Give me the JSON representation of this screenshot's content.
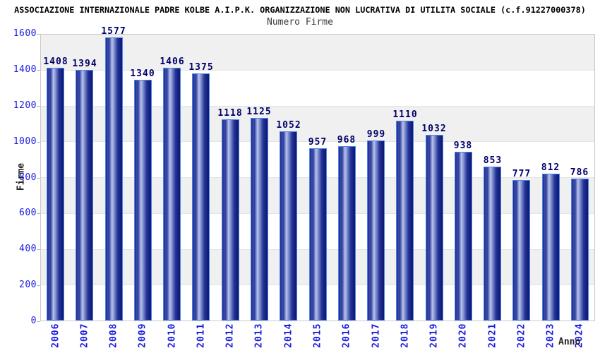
{
  "header": {
    "title": "ASSOCIAZIONE INTERNAZIONALE PADRE KOLBE A.I.P.K. ORGANIZZAZIONE NON LUCRATIVA DI UTILITA SOCIALE (c.f.91227000378)",
    "subtitle": "Numero Firme"
  },
  "chart_data": {
    "type": "bar",
    "title": "Numero Firme",
    "xlabel": "Anno",
    "ylabel": "Firme",
    "categories": [
      "2006",
      "2007",
      "2008",
      "2009",
      "2010",
      "2011",
      "2012",
      "2013",
      "2014",
      "2015",
      "2016",
      "2017",
      "2018",
      "2019",
      "2020",
      "2021",
      "2022",
      "2023",
      "2024"
    ],
    "values": [
      1408,
      1394,
      1577,
      1340,
      1406,
      1375,
      1118,
      1125,
      1052,
      957,
      968,
      999,
      1110,
      1032,
      938,
      853,
      777,
      812,
      786
    ],
    "ylim": [
      0,
      1600
    ],
    "yticks": [
      0,
      200,
      400,
      600,
      800,
      1000,
      1200,
      1400,
      1600
    ],
    "grid": "alternating horizontal gray/white bands every 200 units",
    "legend": "none",
    "value_labels_position": "above each bar"
  },
  "colors": {
    "tick_label": "#1a1ae0",
    "value_label": "#00006a",
    "bar_border": "#4d86e8",
    "bar_gradient_dark": "#0d1873",
    "bar_gradient_mid": "#2e3d9e",
    "bar_gradient_light": "#b9c3ec",
    "band_gray": "#f0f0f0",
    "band_line": "#e3e3e3",
    "plot_border": "#c9c9c9",
    "title": "#000000",
    "subtitle": "#3a3a3a",
    "axis_title": "#222222"
  }
}
